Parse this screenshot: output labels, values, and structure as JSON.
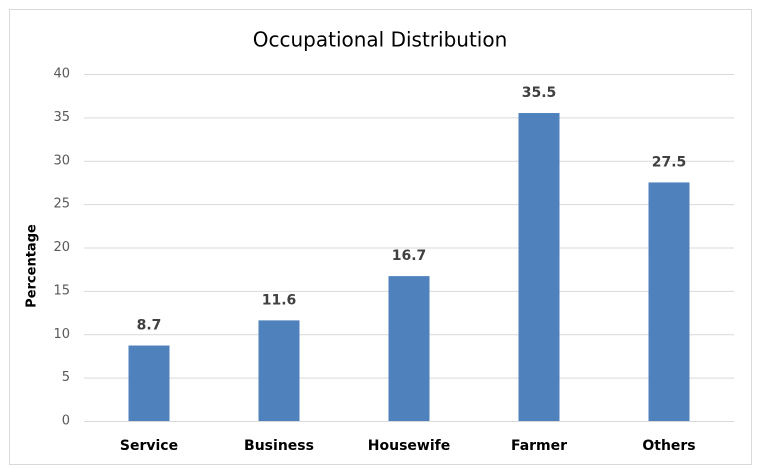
{
  "chart_data": {
    "type": "bar",
    "title": "Occupational Distribution",
    "y_label": "Percentage",
    "categories": [
      "Service",
      "Business",
      "Housewife",
      "Farmer",
      "Others"
    ],
    "values": [
      8.7,
      11.6,
      16.7,
      35.5,
      27.5
    ],
    "color": "#4f81bd",
    "ylim": [
      0,
      40
    ],
    "yticks": [
      0,
      5,
      10,
      15,
      20,
      25,
      30,
      35,
      40
    ],
    "grid": true,
    "data_labels": true
  }
}
